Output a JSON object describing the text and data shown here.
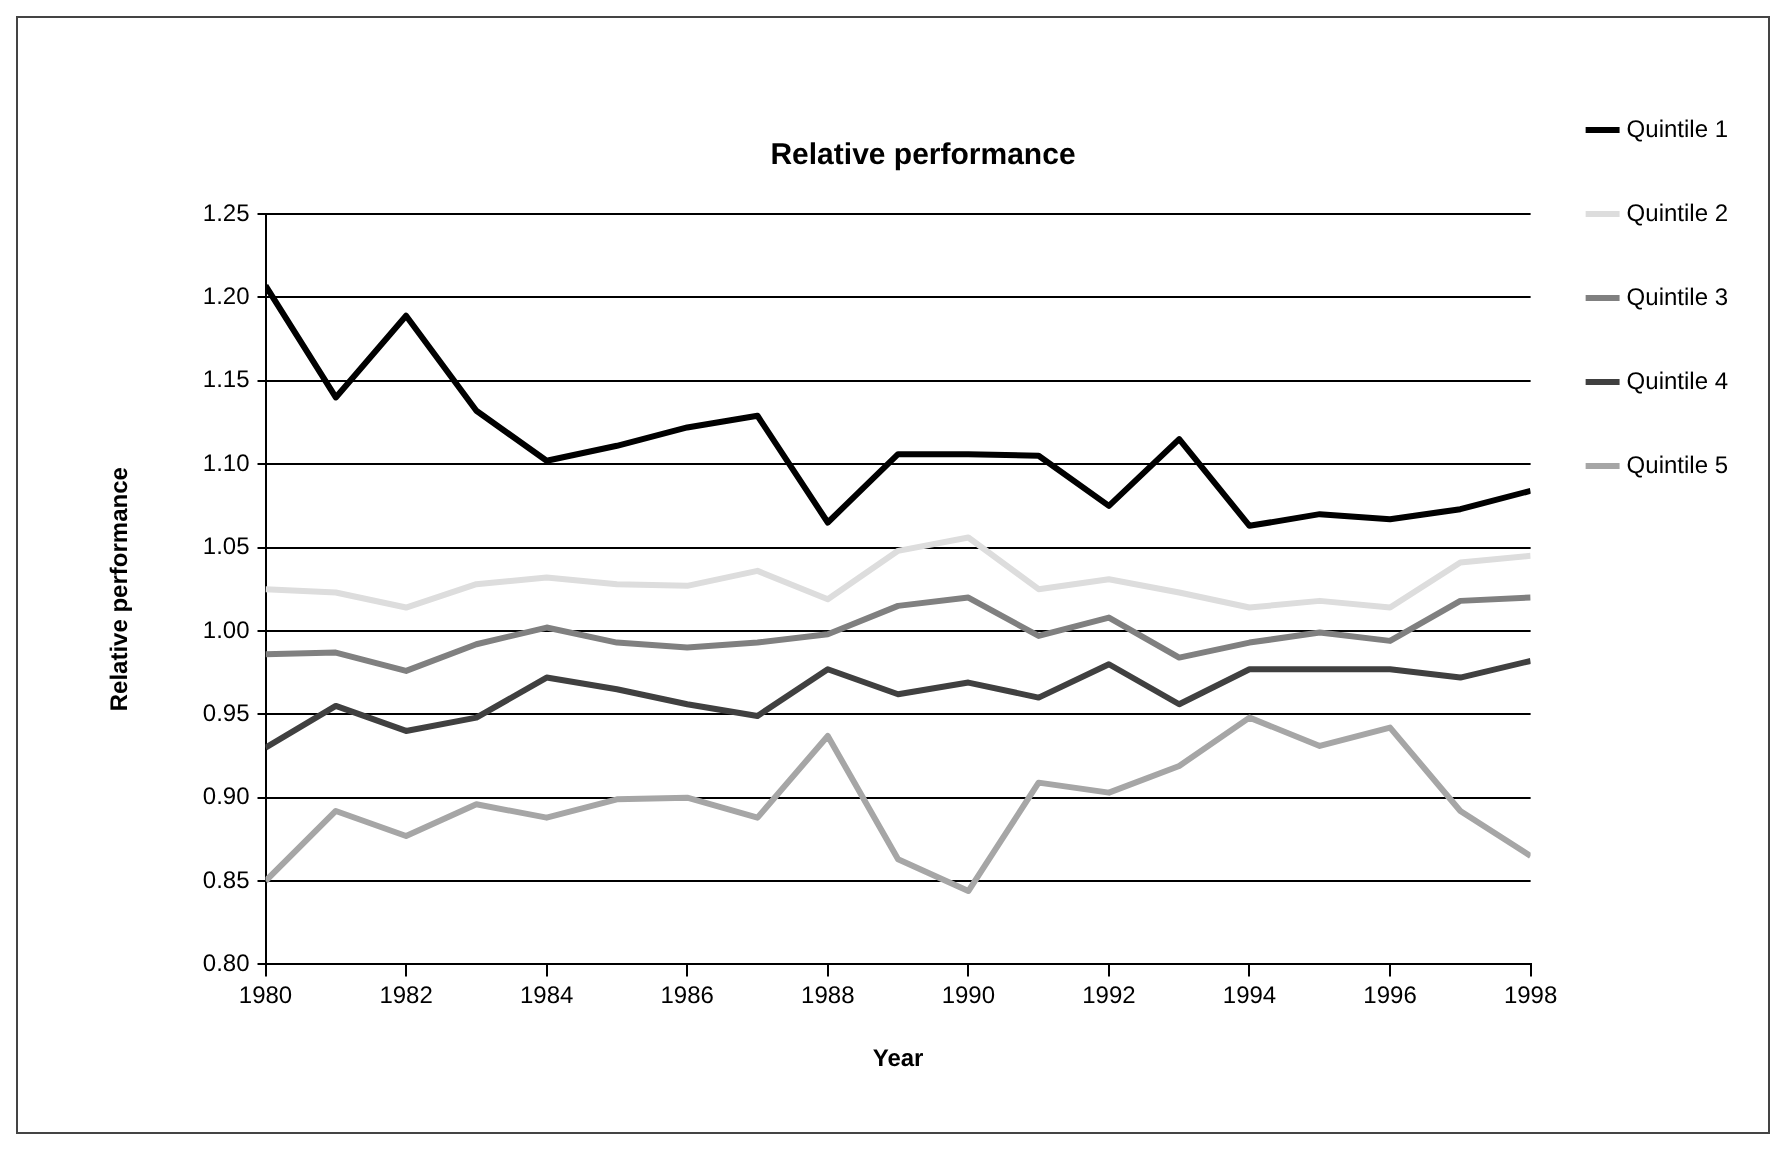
{
  "chart_data": {
    "type": "line",
    "title": "Relative performance",
    "xlabel": "Year",
    "ylabel": "Relative performance",
    "x": [
      1980,
      1981,
      1982,
      1983,
      1984,
      1985,
      1986,
      1987,
      1988,
      1989,
      1990,
      1991,
      1992,
      1993,
      1994,
      1995,
      1996,
      1997,
      1998
    ],
    "series": [
      {
        "name": "Quintile 1",
        "color": "#000000",
        "values": [
          1.207,
          1.14,
          1.189,
          1.132,
          1.102,
          1.111,
          1.122,
          1.129,
          1.065,
          1.106,
          1.106,
          1.105,
          1.075,
          1.115,
          1.063,
          1.07,
          1.067,
          1.073,
          1.084
        ]
      },
      {
        "name": "Quintile 2",
        "color": "#dddddd",
        "values": [
          1.025,
          1.023,
          1.014,
          1.028,
          1.032,
          1.028,
          1.027,
          1.036,
          1.019,
          1.048,
          1.056,
          1.025,
          1.031,
          1.023,
          1.014,
          1.018,
          1.014,
          1.041,
          1.045
        ]
      },
      {
        "name": "Quintile 3",
        "color": "#808080",
        "values": [
          0.986,
          0.987,
          0.976,
          0.992,
          1.002,
          0.993,
          0.99,
          0.993,
          0.998,
          1.015,
          1.02,
          0.997,
          1.008,
          0.984,
          0.993,
          0.999,
          0.994,
          1.018,
          1.02
        ]
      },
      {
        "name": "Quintile 4",
        "color": "#404040",
        "values": [
          0.93,
          0.955,
          0.94,
          0.948,
          0.972,
          0.965,
          0.956,
          0.949,
          0.977,
          0.962,
          0.969,
          0.96,
          0.98,
          0.956,
          0.977,
          0.977,
          0.977,
          0.972,
          0.982
        ]
      },
      {
        "name": "Quintile 5",
        "color": "#a6a6a6",
        "values": [
          0.85,
          0.892,
          0.877,
          0.896,
          0.888,
          0.899,
          0.9,
          0.888,
          0.937,
          0.863,
          0.844,
          0.909,
          0.903,
          0.919,
          0.948,
          0.931,
          0.942,
          0.892,
          0.865
        ]
      }
    ],
    "xlim": [
      1980,
      1998
    ],
    "xticks": [
      1980,
      1982,
      1984,
      1986,
      1988,
      1990,
      1992,
      1994,
      1996,
      1998
    ],
    "ylim": [
      0.8,
      1.25
    ],
    "yticks": [
      {
        "value": 0.8,
        "label": "0.80"
      },
      {
        "value": 0.85,
        "label": "0.85"
      },
      {
        "value": 0.9,
        "label": "0.90"
      },
      {
        "value": 0.95,
        "label": "0.95"
      },
      {
        "value": 1.0,
        "label": "1.00"
      },
      {
        "value": 1.05,
        "label": "1.05"
      },
      {
        "value": 1.1,
        "label": "1.10"
      },
      {
        "value": 1.15,
        "label": "1.15"
      },
      {
        "value": 1.2,
        "label": "1.20"
      },
      {
        "value": 1.25,
        "label": "1.25"
      }
    ],
    "grid": "y",
    "legend": "right",
    "marker": "none",
    "line_style": "solid"
  }
}
